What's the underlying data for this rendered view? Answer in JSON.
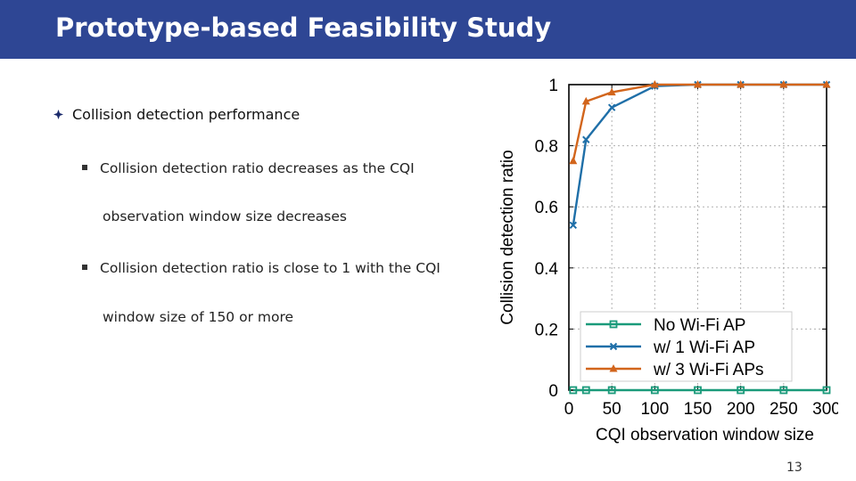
{
  "slide": {
    "title": "Prototype-based Feasibility Study",
    "page_number": "13",
    "bullet": "Collision detection performance",
    "sub_bullets": [
      {
        "line1": "Collision detection ratio decreases as the CQI",
        "line2": "observation window size decreases"
      },
      {
        "line1": "Collision detection ratio is close to 1 with the CQI",
        "line2": "window size of 150 or more"
      }
    ]
  },
  "colors": {
    "title_bar": "#2e4694",
    "no_ap": "#1a9a7a",
    "one_ap": "#1f6fa8",
    "three_ap": "#d2651c"
  },
  "chart_data": {
    "type": "line",
    "xlabel": "CQI observation window size",
    "ylabel": "Collision detection ratio",
    "xlim": [
      0,
      300
    ],
    "ylim": [
      0,
      1
    ],
    "x_ticks": [
      0,
      50,
      100,
      150,
      200,
      250,
      300
    ],
    "y_ticks": [
      0,
      0.2,
      0.4,
      0.6,
      0.8,
      1
    ],
    "y_tick_labels": [
      "0",
      "0.2",
      "0.4",
      "0.6",
      "0.8",
      "1"
    ],
    "legend_position": "bottom-right",
    "grid": true,
    "series": [
      {
        "name": "No Wi-Fi AP",
        "marker": "square",
        "x": [
          5,
          20,
          50,
          100,
          150,
          200,
          250,
          300
        ],
        "values": [
          0,
          0,
          0,
          0,
          0,
          0,
          0,
          0
        ]
      },
      {
        "name": "w/ 1 Wi-Fi AP",
        "marker": "x",
        "x": [
          5,
          20,
          50,
          100,
          150,
          200,
          250,
          300
        ],
        "values": [
          0.54,
          0.82,
          0.925,
          0.995,
          1.0,
          1.0,
          1.0,
          1.0
        ]
      },
      {
        "name": "w/ 3 Wi-Fi APs",
        "marker": "triangle",
        "x": [
          5,
          20,
          50,
          100,
          150,
          200,
          250,
          300
        ],
        "values": [
          0.75,
          0.945,
          0.975,
          1.0,
          1.0,
          1.0,
          1.0,
          1.0
        ]
      }
    ]
  }
}
